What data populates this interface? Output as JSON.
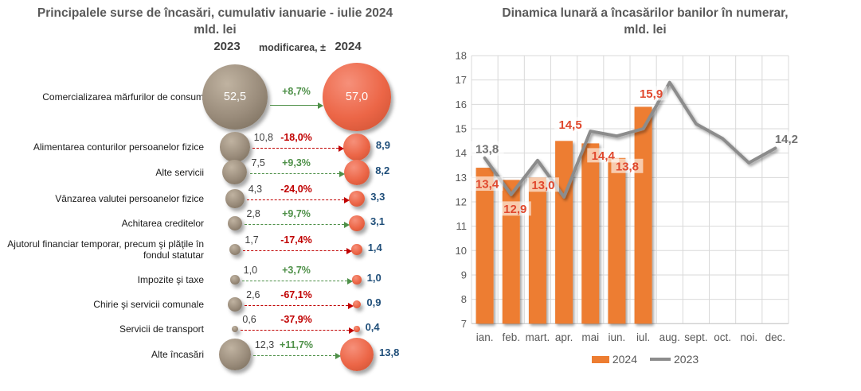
{
  "left_panel": {
    "title_line1": "Principalele surse de încasări, cumulativ ianuarie - iulie 2024",
    "title_line2": "mld. lei",
    "columns": {
      "y2023": "2023",
      "change": "modificarea, ±",
      "y2024": "2024"
    }
  },
  "right_panel": {
    "title_line1": "Dinamica lunară a încasărilor banilor în numerar,",
    "title_line2": "mld. lei",
    "legend": [
      "2024",
      "2023"
    ]
  },
  "colors": {
    "bar_2024": "#ED7D31",
    "line_2023": "#8C8C8C",
    "bubble_2023": "#9A8C7B",
    "bubble_2024": "#EC6647",
    "positive_change": "#4E9048",
    "negative_change": "#C00000",
    "value_2024_text": "#1F4E79",
    "bar_label_text": "#E0492F",
    "line_label_text": "#737373",
    "axis_text": "#595959",
    "gridline": "#D9D9D9"
  },
  "chart_data": [
    {
      "type": "bubble-comparison",
      "title": "Principalele surse de încasări, cumulativ ianuarie - iulie 2024, mld. lei",
      "columns": [
        "2023",
        "modificarea, ±",
        "2024"
      ],
      "rows": [
        {
          "label": "Comercializarea mărfurilor de consum",
          "value_2023": "52,5",
          "change": "+8,7%",
          "value_2024": "57,0"
        },
        {
          "label": "Alimentarea conturilor persoanelor fizice",
          "value_2023": "10,8",
          "change": "-18,0%",
          "value_2024": "8,9"
        },
        {
          "label": "Alte servicii",
          "value_2023": "7,5",
          "change": "+9,3%",
          "value_2024": "8,2"
        },
        {
          "label": "Vânzarea valutei persoanelor fizice",
          "value_2023": "4,3",
          "change": "-24,0%",
          "value_2024": "3,3"
        },
        {
          "label": "Achitarea creditelor",
          "value_2023": "2,8",
          "change": "+9,7%",
          "value_2024": "3,1"
        },
        {
          "label": "Ajutorul financiar temporar, precum şi plăţile în fondul statutar",
          "value_2023": "1,7",
          "change": "-17,4%",
          "value_2024": "1,4"
        },
        {
          "label": "Impozite şi taxe",
          "value_2023": "1,0",
          "change": "+3,7%",
          "value_2024": "1,0"
        },
        {
          "label": "Chirie şi servicii comunale",
          "value_2023": "2,6",
          "change": "-67,1%",
          "value_2024": "0,9"
        },
        {
          "label": "Servicii de transport",
          "value_2023": "0,6",
          "change": "-37,9%",
          "value_2024": "0,4"
        },
        {
          "label": "Alte încasări",
          "value_2023": "12,3",
          "change": "+11,7%",
          "value_2024": "13,8"
        }
      ]
    },
    {
      "type": "bar+line",
      "title": "Dinamica lunară a încasărilor banilor în numerar, mld. lei",
      "categories": [
        "ian.",
        "feb.",
        "mart.",
        "apr.",
        "mai",
        "iun.",
        "iul.",
        "aug.",
        "sept.",
        "oct.",
        "noi.",
        "dec."
      ],
      "series": [
        {
          "name": "2024",
          "type": "bar",
          "values": [
            13.4,
            12.9,
            13.0,
            14.5,
            14.4,
            13.8,
            15.9
          ],
          "labels": [
            "13,4",
            "12,9",
            "13,0",
            "14,5",
            "14,4",
            "13,8",
            "15,9"
          ]
        },
        {
          "name": "2023",
          "type": "line",
          "values": [
            13.8,
            12.3,
            13.7,
            12.2,
            14.9,
            14.7,
            15.0,
            16.9,
            15.2,
            14.6,
            13.6,
            14.2
          ],
          "point_labels": {
            "0": "13,8",
            "11": "14,2"
          }
        }
      ],
      "ylim": [
        7,
        18
      ],
      "ytick_step": 1,
      "grid": true,
      "legend_position": "bottom"
    }
  ]
}
